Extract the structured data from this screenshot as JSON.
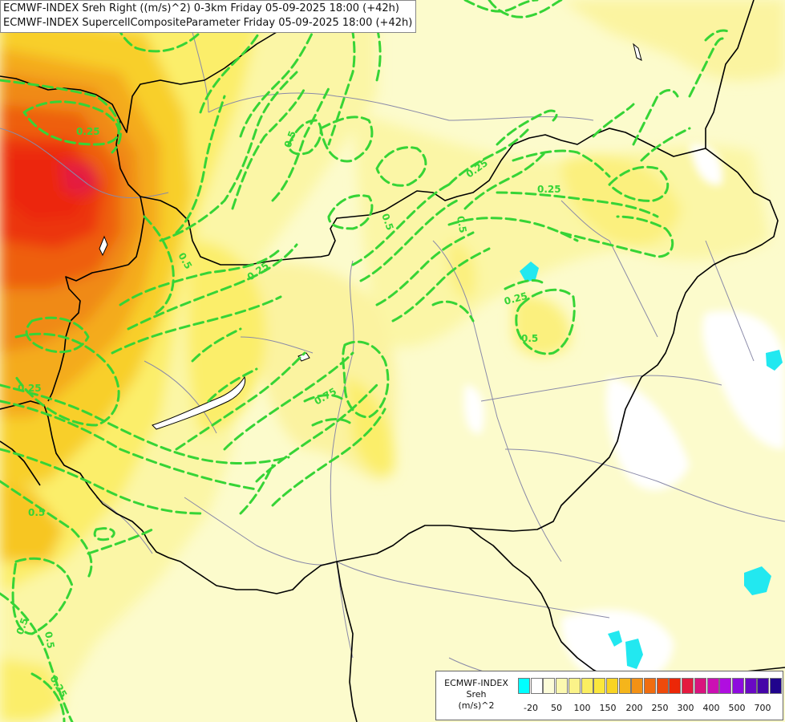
{
  "titles": {
    "line1": "ECMWF-INDEX Sreh Right ((m/s)^2) 0-3km Friday 05-09-2025 18:00 (+42h)",
    "line2": "ECMWF-INDEX SupercellCompositeParameter Friday 05-09-2025 18:00 (+42h)"
  },
  "legend": {
    "name_line1": "ECMWF-INDEX",
    "name_line2": "Sreh",
    "name_line3": "(m/s)^2",
    "colors": [
      "#00ffff",
      "#ffffff",
      "#fcfcd8",
      "#fbf8b0",
      "#fbf389",
      "#fbee61",
      "#fbe73c",
      "#f8d423",
      "#f5b51b",
      "#f39115",
      "#f06d10",
      "#ee4a0b",
      "#ec2707",
      "#e41b3f",
      "#d9147d",
      "#cc10b3",
      "#b00ee0",
      "#8e0bde",
      "#6a09c4",
      "#4506a8",
      "#20048c"
    ],
    "tick_labels": [
      "-20",
      "50",
      "100",
      "150",
      "200",
      "250",
      "300",
      "400",
      "500",
      "700"
    ]
  },
  "contour_labels": [
    "0.25",
    "0.5",
    "0.5",
    "0.25",
    "0.5",
    "0.5",
    "0.25",
    "0.25",
    "0.5",
    "0.25",
    "0.5",
    "0.75",
    "0.25",
    "0.5",
    "0.5",
    "0.25"
  ],
  "colors": {
    "contour": "#36d436",
    "border": "#000000",
    "river": "#8a8aa8"
  }
}
